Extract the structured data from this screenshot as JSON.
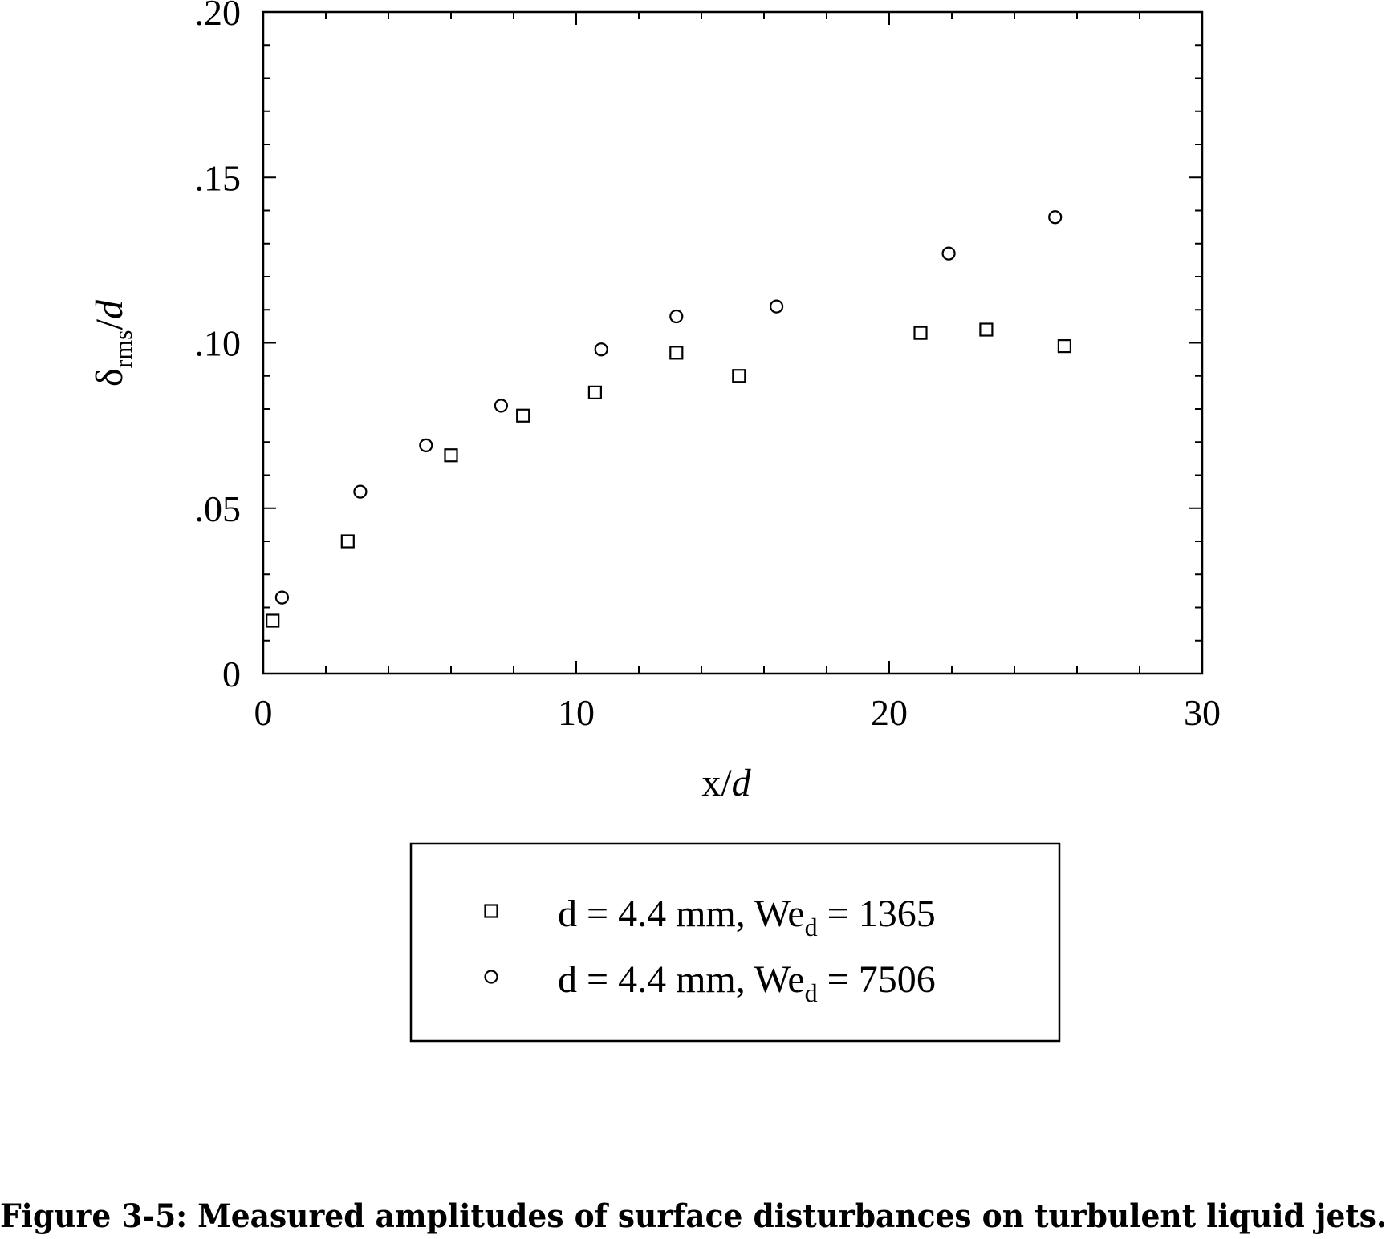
{
  "chart_data": {
    "type": "scatter",
    "xlabel": "x/d",
    "ylabel": "δrms/d",
    "xlim": [
      0,
      30
    ],
    "ylim": [
      0,
      0.2
    ],
    "x_ticks": [
      {
        "value": 0,
        "label": "0"
      },
      {
        "value": 10,
        "label": "10"
      },
      {
        "value": 20,
        "label": "20"
      },
      {
        "value": 30,
        "label": "30"
      }
    ],
    "y_ticks": [
      {
        "value": 0,
        "label": "0"
      },
      {
        "value": 0.05,
        "label": ".05"
      },
      {
        "value": 0.1,
        "label": ".10"
      },
      {
        "value": 0.15,
        "label": ".15"
      },
      {
        "value": 0.2,
        "label": ".20"
      }
    ],
    "x_minor_step": 2,
    "y_minor_step": 0.01,
    "grid": false,
    "legend_position": "below",
    "series": [
      {
        "name": "d = 4.4 mm, We_d = 1365",
        "legend_parts": [
          "d = 4.4 mm, We",
          "d",
          " = 1365"
        ],
        "marker": "square",
        "points": [
          {
            "x": 0.3,
            "y": 0.016
          },
          {
            "x": 2.7,
            "y": 0.04
          },
          {
            "x": 6.0,
            "y": 0.066
          },
          {
            "x": 8.3,
            "y": 0.078
          },
          {
            "x": 10.6,
            "y": 0.085
          },
          {
            "x": 13.2,
            "y": 0.097
          },
          {
            "x": 15.2,
            "y": 0.09
          },
          {
            "x": 21.0,
            "y": 0.103
          },
          {
            "x": 23.1,
            "y": 0.104
          },
          {
            "x": 25.6,
            "y": 0.099
          }
        ]
      },
      {
        "name": "d = 4.4 mm, We_d = 7506",
        "legend_parts": [
          "d = 4.4 mm, We",
          "d",
          " = 7506"
        ],
        "marker": "circle",
        "points": [
          {
            "x": 0.6,
            "y": 0.023
          },
          {
            "x": 3.1,
            "y": 0.055
          },
          {
            "x": 5.2,
            "y": 0.069
          },
          {
            "x": 7.6,
            "y": 0.081
          },
          {
            "x": 10.8,
            "y": 0.098
          },
          {
            "x": 13.2,
            "y": 0.108
          },
          {
            "x": 16.4,
            "y": 0.111
          },
          {
            "x": 21.9,
            "y": 0.127
          },
          {
            "x": 25.3,
            "y": 0.138
          }
        ]
      }
    ]
  },
  "caption": "Figure 3-5: Measured amplitudes of surface disturbances on turbulent liquid jets."
}
